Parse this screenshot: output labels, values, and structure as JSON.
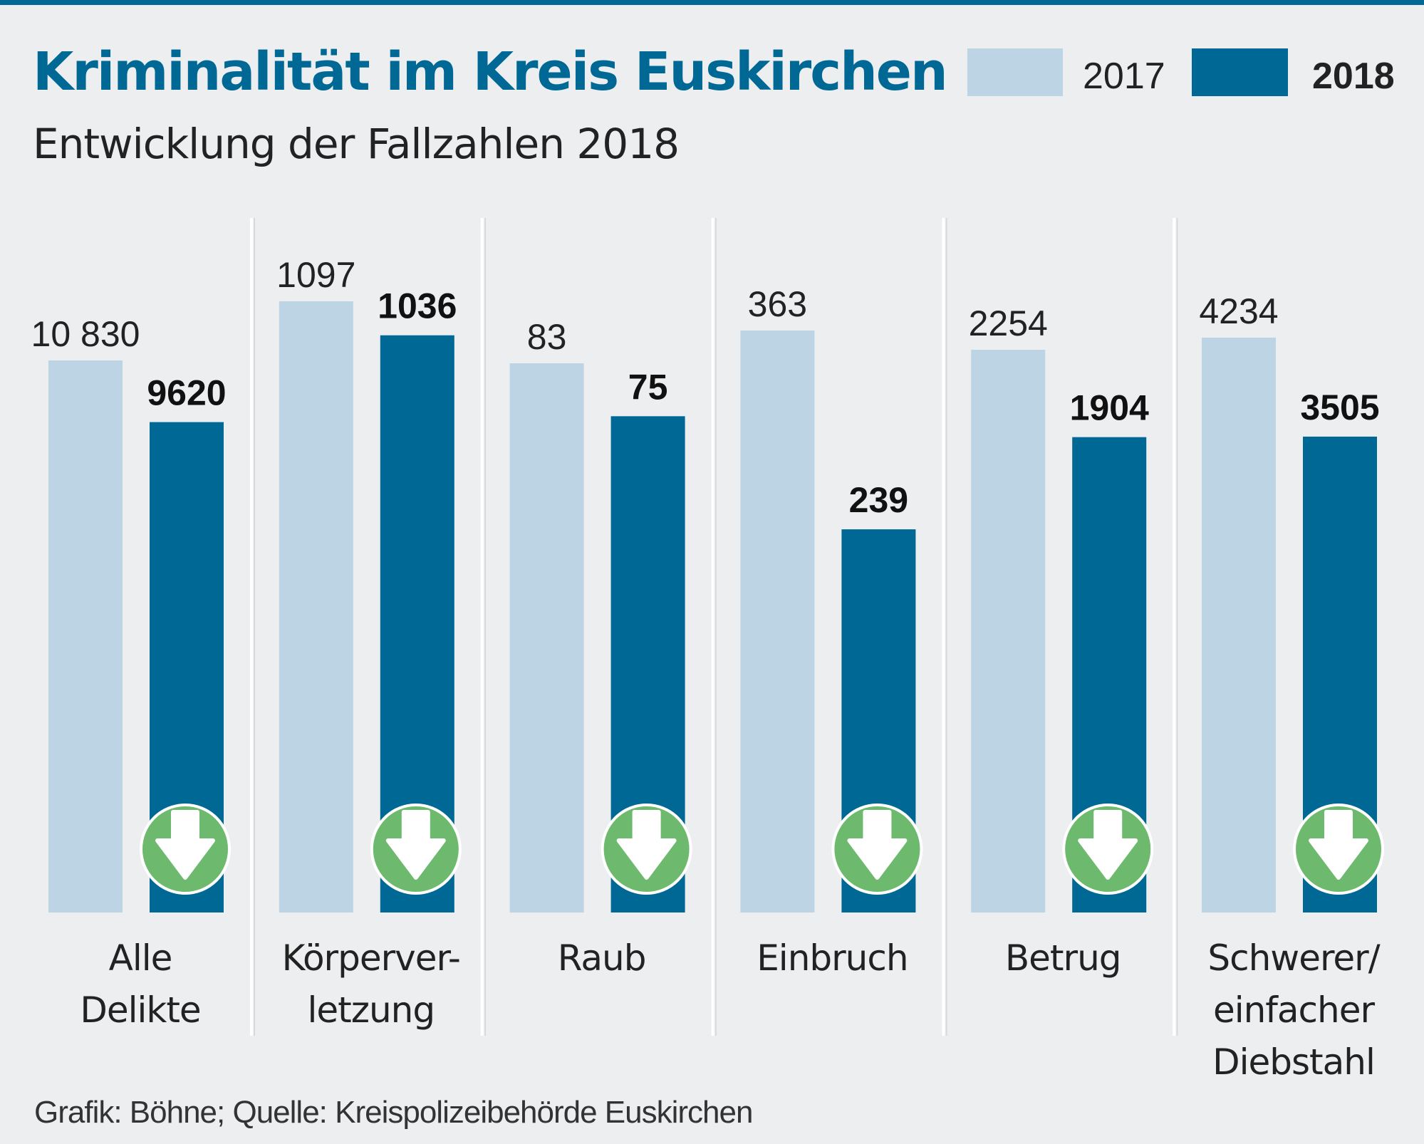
{
  "chart_data": {
    "type": "bar",
    "title": "Kriminalität im Kreis Euskirchen",
    "subtitle": "Entwicklung der Fallzahlen 2018",
    "categories": [
      [
        "Alle",
        "Delikte"
      ],
      [
        "Körperver-",
        "letzung"
      ],
      [
        "Raub"
      ],
      [
        "Einbruch"
      ],
      [
        "Betrug"
      ],
      [
        "Schwerer/",
        "einfacher",
        "Diebstahl"
      ]
    ],
    "series": [
      {
        "name": "2017",
        "values": [
          10830,
          1097,
          83,
          363,
          2254,
          4234
        ],
        "labels": [
          "10 830",
          "1097",
          "83",
          "363",
          "2254",
          "4234"
        ],
        "color": "#bcd4e4"
      },
      {
        "name": "2018",
        "values": [
          9620,
          1036,
          75,
          239,
          1904,
          3505
        ],
        "labels": [
          "9620",
          "1036",
          "75",
          "239",
          "1904",
          "3505"
        ],
        "color": "#006894"
      }
    ],
    "trend_icon": "green-down-arrow-icon",
    "trend_color": "#6dba6e",
    "scale": "per-category",
    "grid": false,
    "legend": "top-right",
    "source": "Grafik: Böhne; Quelle: Kreispolizeibehörde Euskirchen"
  }
}
